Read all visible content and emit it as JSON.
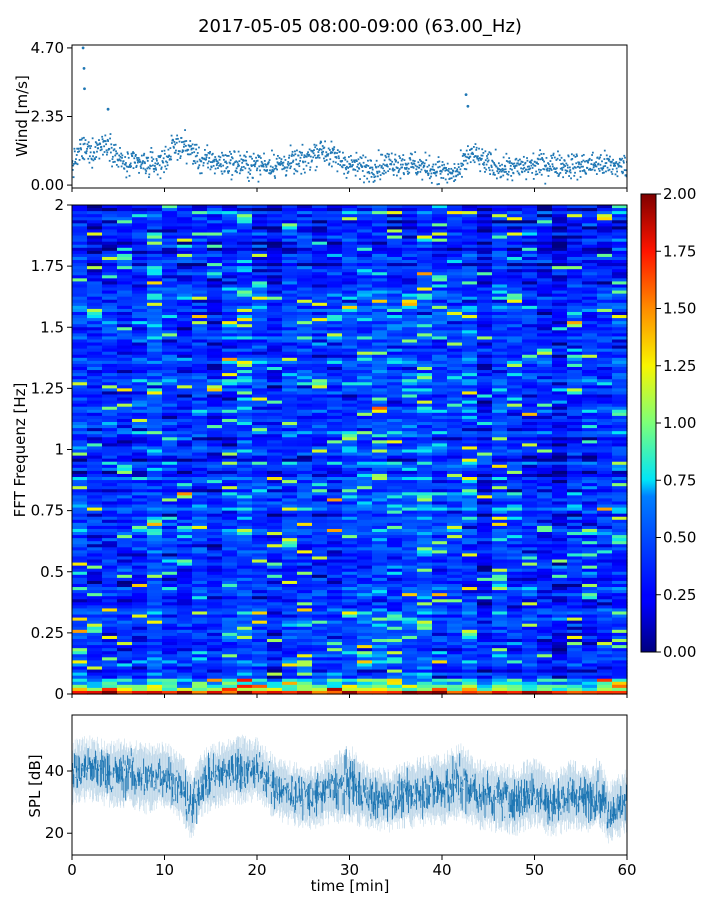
{
  "title": "2017-05-05 08:00-09:00 (63.00_Hz)",
  "colors": {
    "wind": "#1f77b4",
    "spl": "#1f77b4",
    "colormap": "jet"
  },
  "chart_data": [
    {
      "type": "scatter",
      "panel": "wind",
      "title": "2017-05-05 08:00-09:00 (63.00_Hz)",
      "xlabel": "",
      "ylabel": "Wind [m/s]",
      "xlim": [
        0,
        60
      ],
      "ylim": [
        -0.1,
        4.8
      ],
      "yticks": [
        0.0,
        2.35,
        4.7
      ],
      "ytick_labels": [
        "0.00",
        "2.35",
        "4.70"
      ],
      "baseline_samples": [
        [
          0,
          0.62
        ],
        [
          1,
          1.25
        ],
        [
          2,
          1.1
        ],
        [
          3,
          1.35
        ],
        [
          4,
          1.45
        ],
        [
          5,
          0.9
        ],
        [
          6,
          0.65
        ],
        [
          7,
          0.75
        ],
        [
          8,
          0.7
        ],
        [
          9,
          0.72
        ],
        [
          10,
          0.85
        ],
        [
          11,
          1.3
        ],
        [
          12,
          1.35
        ],
        [
          13,
          1.15
        ],
        [
          14,
          0.8
        ],
        [
          15,
          0.85
        ],
        [
          16,
          0.75
        ],
        [
          17,
          0.78
        ],
        [
          18,
          0.72
        ],
        [
          19,
          0.7
        ],
        [
          20,
          0.68
        ],
        [
          21,
          0.72
        ],
        [
          22,
          0.7
        ],
        [
          23,
          0.72
        ],
        [
          24,
          0.78
        ],
        [
          25,
          0.8
        ],
        [
          26,
          1.05
        ],
        [
          27,
          1.25
        ],
        [
          28,
          1.0
        ],
        [
          29,
          0.85
        ],
        [
          30,
          0.7
        ],
        [
          31,
          0.62
        ],
        [
          32,
          0.6
        ],
        [
          33,
          0.65
        ],
        [
          34,
          0.72
        ],
        [
          35,
          0.78
        ],
        [
          36,
          0.72
        ],
        [
          37,
          0.7
        ],
        [
          38,
          0.6
        ],
        [
          39,
          0.55
        ],
        [
          40,
          0.5
        ],
        [
          41,
          0.35
        ],
        [
          42,
          0.5
        ],
        [
          43,
          1.1
        ],
        [
          44,
          0.9
        ],
        [
          45,
          0.7
        ],
        [
          46,
          0.62
        ],
        [
          47,
          0.6
        ],
        [
          48,
          0.58
        ],
        [
          49,
          0.62
        ],
        [
          50,
          0.66
        ],
        [
          51,
          0.7
        ],
        [
          52,
          0.72
        ],
        [
          53,
          0.7
        ],
        [
          54,
          0.68
        ],
        [
          55,
          0.65
        ],
        [
          56,
          0.7
        ],
        [
          57,
          0.72
        ],
        [
          58,
          0.68
        ],
        [
          59,
          0.65
        ],
        [
          60,
          0.66
        ]
      ],
      "spikes": [
        [
          1.2,
          4.7
        ],
        [
          1.3,
          4.0
        ],
        [
          1.35,
          3.3
        ],
        [
          3.9,
          2.6
        ],
        [
          42.6,
          3.1
        ],
        [
          42.8,
          2.7
        ]
      ]
    },
    {
      "type": "heatmap",
      "panel": "spectrogram",
      "xlabel": "",
      "ylabel": "FFT Frequenz [Hz]",
      "xlim": [
        0,
        60
      ],
      "ylim": [
        0,
        2
      ],
      "yticks": [
        0,
        0.25,
        0.5,
        0.75,
        1,
        1.25,
        1.5,
        1.75,
        2
      ],
      "ytick_labels": [
        "0",
        "0.25",
        "0.5",
        "0.75",
        "1",
        "1.25",
        "1.5",
        "1.75",
        "2"
      ],
      "colorbar": {
        "range": [
          0.0,
          2.0
        ],
        "ticks": [
          0.0,
          0.25,
          0.5,
          0.75,
          1.0,
          1.25,
          1.5,
          1.75,
          2.0
        ],
        "tick_labels": [
          "0.00",
          "0.25",
          "0.50",
          "0.75",
          "1.00",
          "1.25",
          "1.50",
          "1.75",
          "2.00"
        ]
      }
    },
    {
      "type": "line",
      "panel": "spl",
      "xlabel": "time [min]",
      "ylabel": "SPL [dB]",
      "xlim": [
        0,
        60
      ],
      "ylim": [
        13,
        58
      ],
      "xticks": [
        0,
        10,
        20,
        30,
        40,
        50,
        60
      ],
      "xtick_labels": [
        "0",
        "10",
        "20",
        "30",
        "40",
        "50",
        "60"
      ],
      "yticks": [
        20,
        40
      ],
      "ytick_labels": [
        "20",
        "40"
      ],
      "envelope": [
        {
          "x": 0,
          "low": 34,
          "high": 45
        },
        {
          "x": 2,
          "low": 35,
          "high": 47
        },
        {
          "x": 4,
          "low": 33,
          "high": 45
        },
        {
          "x": 6,
          "low": 33,
          "high": 46
        },
        {
          "x": 8,
          "low": 31,
          "high": 44
        },
        {
          "x": 10,
          "low": 33,
          "high": 45
        },
        {
          "x": 12,
          "low": 28,
          "high": 40
        },
        {
          "x": 13,
          "low": 22,
          "high": 34
        },
        {
          "x": 14,
          "low": 30,
          "high": 42
        },
        {
          "x": 16,
          "low": 33,
          "high": 45
        },
        {
          "x": 18,
          "low": 34,
          "high": 47
        },
        {
          "x": 20,
          "low": 35,
          "high": 46
        },
        {
          "x": 22,
          "low": 29,
          "high": 40
        },
        {
          "x": 24,
          "low": 27,
          "high": 38
        },
        {
          "x": 26,
          "low": 26,
          "high": 37
        },
        {
          "x": 28,
          "low": 28,
          "high": 40
        },
        {
          "x": 30,
          "low": 28,
          "high": 44
        },
        {
          "x": 32,
          "low": 26,
          "high": 37
        },
        {
          "x": 34,
          "low": 25,
          "high": 36
        },
        {
          "x": 36,
          "low": 26,
          "high": 38
        },
        {
          "x": 38,
          "low": 27,
          "high": 40
        },
        {
          "x": 40,
          "low": 27,
          "high": 41
        },
        {
          "x": 42,
          "low": 29,
          "high": 44
        },
        {
          "x": 44,
          "low": 26,
          "high": 39
        },
        {
          "x": 46,
          "low": 25,
          "high": 38
        },
        {
          "x": 48,
          "low": 24,
          "high": 37
        },
        {
          "x": 50,
          "low": 27,
          "high": 40
        },
        {
          "x": 52,
          "low": 23,
          "high": 35
        },
        {
          "x": 54,
          "low": 26,
          "high": 39
        },
        {
          "x": 56,
          "low": 25,
          "high": 37
        },
        {
          "x": 57,
          "low": 27,
          "high": 40
        },
        {
          "x": 58,
          "low": 21,
          "high": 32
        },
        {
          "x": 60,
          "low": 25,
          "high": 36
        }
      ]
    }
  ]
}
